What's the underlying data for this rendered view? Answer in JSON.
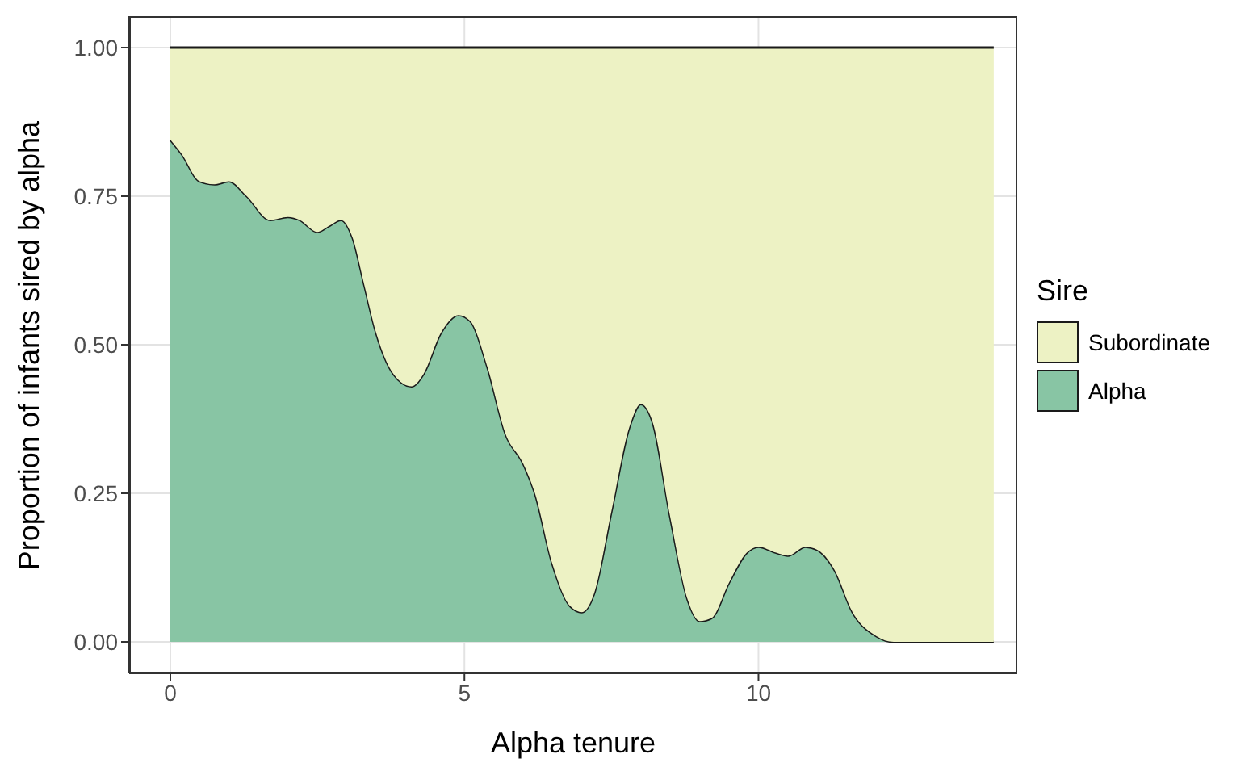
{
  "chart_data": {
    "type": "area",
    "stacked": true,
    "xlabel": "Alpha tenure",
    "ylabel": "Proportion of infants sired by alpha",
    "legend_title": "Sire",
    "legend": "right",
    "grid": true,
    "x": [
      0,
      0.2,
      0.5,
      0.75,
      1,
      1.3,
      1.7,
      2,
      2.2,
      2.5,
      2.7,
      2.9,
      3.1,
      3.3,
      3.5,
      3.8,
      4.1,
      4.3,
      4.6,
      4.9,
      5.1,
      5.4,
      5.7,
      6,
      6.2,
      6.5,
      6.8,
      7,
      7.2,
      7.5,
      7.8,
      8,
      8.2,
      8.5,
      8.8,
      9,
      9.2,
      9.5,
      9.8,
      10,
      10.3,
      10.5,
      10.8,
      11,
      11.3,
      11.6,
      12,
      12.3,
      14
    ],
    "series": [
      {
        "name": "Alpha",
        "color": "#88c5a4",
        "values": [
          0.845,
          0.82,
          0.775,
          0.77,
          0.775,
          0.75,
          0.71,
          0.715,
          0.71,
          0.69,
          0.7,
          0.71,
          0.68,
          0.6,
          0.52,
          0.45,
          0.43,
          0.45,
          0.52,
          0.55,
          0.54,
          0.46,
          0.35,
          0.3,
          0.25,
          0.13,
          0.06,
          0.05,
          0.08,
          0.22,
          0.36,
          0.4,
          0.37,
          0.21,
          0.07,
          0.035,
          0.04,
          0.1,
          0.15,
          0.16,
          0.15,
          0.145,
          0.16,
          0.155,
          0.12,
          0.05,
          0.01,
          0,
          0
        ]
      },
      {
        "name": "Subordinate",
        "color": "#edf2c4",
        "values": [
          0.155,
          0.18,
          0.225,
          0.23,
          0.225,
          0.25,
          0.29,
          0.285,
          0.29,
          0.31,
          0.3,
          0.29,
          0.32,
          0.4,
          0.48,
          0.55,
          0.57,
          0.55,
          0.48,
          0.45,
          0.46,
          0.54,
          0.65,
          0.7,
          0.75,
          0.87,
          0.94,
          0.95,
          0.92,
          0.78,
          0.64,
          0.6,
          0.63,
          0.79,
          0.93,
          0.965,
          0.96,
          0.9,
          0.85,
          0.84,
          0.85,
          0.855,
          0.84,
          0.845,
          0.88,
          0.95,
          0.99,
          1,
          1
        ]
      }
    ],
    "xlim": [
      -0.7,
      14.4
    ],
    "xticks": [
      0,
      5,
      10
    ],
    "ylim": [
      -0.053,
      1.053
    ],
    "yticks": [
      {
        "value": 0,
        "label": "0.00"
      },
      {
        "value": 0.25,
        "label": "0.25"
      },
      {
        "value": 0.5,
        "label": "0.50"
      },
      {
        "value": 0.75,
        "label": "0.75"
      },
      {
        "value": 1,
        "label": "1.00"
      }
    ]
  }
}
